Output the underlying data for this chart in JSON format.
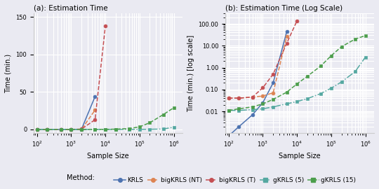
{
  "title_left": "(a): Estimation Time",
  "title_right": "(b): Estimation Time (Log Scale)",
  "xlabel": "Sample Size",
  "ylabel_left": "Time (min.)",
  "ylabel_right": "Time (min.) [log scale]",
  "background_color": "#eaeaf2",
  "KRLS": {
    "x": [
      100,
      200,
      500,
      1000,
      2000,
      5000
    ],
    "y": [
      0.00075,
      0.002,
      0.007,
      0.025,
      0.2,
      44.0
    ],
    "color": "#4c72b0",
    "marker": "o",
    "linestyle": "-",
    "label": "KRLS",
    "ms": 3.5
  },
  "bigKRLS_NT": {
    "x": [
      100,
      200,
      500,
      1000,
      2000,
      5000
    ],
    "y": [
      0.04,
      0.04,
      0.045,
      0.05,
      0.07,
      26.0
    ],
    "color": "#dd8452",
    "marker": "o",
    "linestyle": "--",
    "label": "bigKRLS (NT)",
    "ms": 3.5
  },
  "bigKRLS_T": {
    "x": [
      100,
      200,
      500,
      1000,
      2000,
      5000,
      10000
    ],
    "y": [
      0.04,
      0.04,
      0.045,
      0.12,
      0.5,
      13.0,
      138.0
    ],
    "color": "#c44e52",
    "marker": "o",
    "linestyle": "--",
    "label": "bigKRLS (T)",
    "ms": 3.5
  },
  "gKRLS_5": {
    "x": [
      100,
      200,
      500,
      1000,
      2000,
      5000,
      10000,
      20000,
      50000,
      100000,
      200000,
      500000,
      1000000
    ],
    "y": [
      0.011,
      0.011,
      0.012,
      0.013,
      0.016,
      0.022,
      0.028,
      0.038,
      0.065,
      0.115,
      0.22,
      0.65,
      3.0
    ],
    "color": "#55a8a1",
    "marker": "s",
    "linestyle": "-.",
    "label": "gKRLS (5)",
    "ms": 3.5
  },
  "gKRLS_15": {
    "x": [
      100,
      200,
      500,
      1000,
      2000,
      5000,
      10000,
      20000,
      50000,
      100000,
      200000,
      500000,
      1000000
    ],
    "y": [
      0.011,
      0.013,
      0.016,
      0.022,
      0.035,
      0.075,
      0.18,
      0.4,
      1.2,
      3.5,
      9.0,
      20.0,
      29.0
    ],
    "color": "#4c9e4c",
    "marker": "s",
    "linestyle": "--",
    "label": "gKRLS (15)",
    "ms": 3.5
  },
  "legend_text": "Method:",
  "legend_items": [
    "KRLS",
    "bigKRLS (NT)",
    "bigKRLS (T)",
    "gKRLS (5)",
    "gKRLS (15)"
  ],
  "legend_colors": [
    "#4c72b0",
    "#dd8452",
    "#c44e52",
    "#55a8a1",
    "#4c9e4c"
  ],
  "legend_markers": [
    "o",
    "o",
    "o",
    "s",
    "s"
  ],
  "legend_linestyles": [
    "-",
    "--",
    "--",
    "-.",
    "--"
  ],
  "ylim_left": [
    -5,
    155
  ],
  "xlim_left": [
    80,
    1800000
  ],
  "ylim_right": [
    0.001,
    300
  ],
  "xlim_right": [
    80,
    1800000
  ],
  "yticks_left": [
    0,
    50,
    100,
    150
  ],
  "yticks_right_labels": [
    "0.01",
    "0.10",
    "1.00",
    "10.00",
    "100.00"
  ],
  "yticks_right_vals": [
    0.01,
    0.1,
    1.0,
    10.0,
    100.0
  ]
}
